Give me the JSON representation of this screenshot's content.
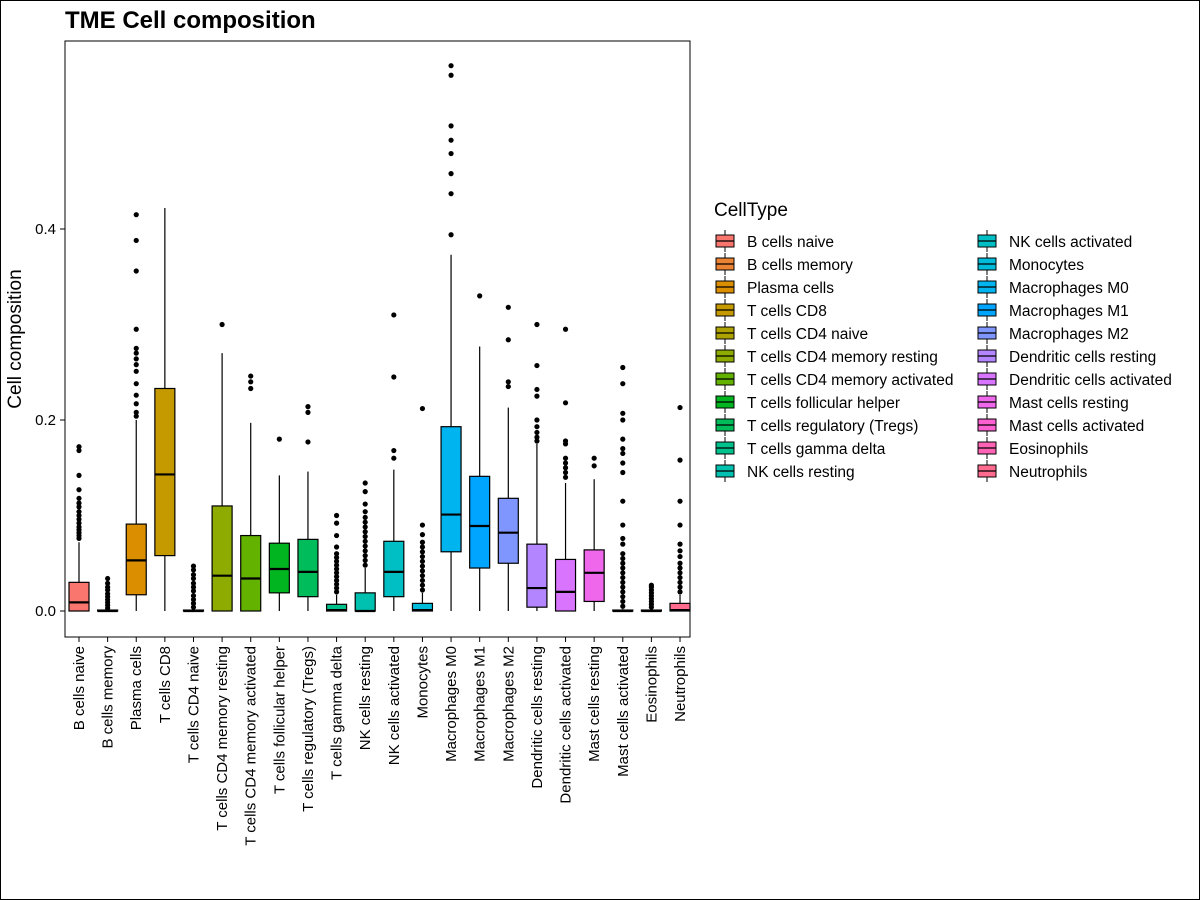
{
  "chart_data": {
    "type": "boxplot",
    "title": "TME Cell composition",
    "xlabel": "",
    "ylabel": "Cell composition",
    "ylim": [
      -0.028,
      0.597
    ],
    "yticks": [
      "0.0",
      "0.2",
      "0.4"
    ],
    "ytick_values": [
      0.0,
      0.2,
      0.4
    ],
    "grid": false,
    "legend": {
      "title": "CellType",
      "placement": "right",
      "columns": 2
    },
    "categories": [
      {
        "name": "B cells naive",
        "color": "#F8766D",
        "q1": 0,
        "median": 0.009,
        "q3": 0.03,
        "whisker_low": 0,
        "whisker_high": 0.072,
        "outliers": [
          0.076,
          0.079,
          0.082,
          0.085,
          0.088,
          0.092,
          0.096,
          0.1,
          0.104,
          0.109,
          0.113,
          0.118,
          0.127,
          0.142,
          0.168,
          0.172
        ]
      },
      {
        "name": "B cells memory",
        "color": "#EB8335",
        "q1": 0,
        "median": 0,
        "q3": 0.001,
        "whisker_low": 0,
        "whisker_high": 0.002,
        "outliers": [
          0.003,
          0.006,
          0.009,
          0.012,
          0.015,
          0.018,
          0.022,
          0.025,
          0.029,
          0.034
        ]
      },
      {
        "name": "Plasma cells",
        "color": "#DA8E00",
        "q1": 0.017,
        "median": 0.053,
        "q3": 0.091,
        "whisker_low": 0,
        "whisker_high": 0.2,
        "outliers": [
          0.204,
          0.208,
          0.217,
          0.226,
          0.238,
          0.251,
          0.258,
          0.264,
          0.27,
          0.275,
          0.295,
          0.356,
          0.388,
          0.415
        ]
      },
      {
        "name": "T cells CD8",
        "color": "#C59900",
        "q1": 0.058,
        "median": 0.143,
        "q3": 0.233,
        "whisker_low": 0,
        "whisker_high": 0.422,
        "outliers": []
      },
      {
        "name": "T cells CD4 naive",
        "color": "#AEA200",
        "q1": 0,
        "median": 0,
        "q3": 0.001,
        "whisker_low": 0,
        "whisker_high": 0.002,
        "outliers": [
          0.004,
          0.008,
          0.012,
          0.016,
          0.021,
          0.025,
          0.029,
          0.034,
          0.038,
          0.043,
          0.047
        ]
      },
      {
        "name": "T cells CD4 memory resting",
        "color": "#8DAB00",
        "q1": 0,
        "median": 0.037,
        "q3": 0.11,
        "whisker_low": 0,
        "whisker_high": 0.27,
        "outliers": [
          0.3
        ]
      },
      {
        "name": "T cells CD4 memory activated",
        "color": "#64B200",
        "q1": 0,
        "median": 0.034,
        "q3": 0.079,
        "whisker_low": 0,
        "whisker_high": 0.197,
        "outliers": [
          0.233,
          0.24,
          0.246
        ]
      },
      {
        "name": "T cells follicular helper",
        "color": "#00B520",
        "q1": 0.019,
        "median": 0.044,
        "q3": 0.071,
        "whisker_low": 0,
        "whisker_high": 0.142,
        "outliers": [
          0.18
        ]
      },
      {
        "name": "T cells regulatory (Tregs)",
        "color": "#00BC5A",
        "q1": 0.015,
        "median": 0.041,
        "q3": 0.075,
        "whisker_low": 0,
        "whisker_high": 0.146,
        "outliers": [
          0.177,
          0.208,
          0.214
        ]
      },
      {
        "name": "T cells gamma delta",
        "color": "#00C08B",
        "q1": 0,
        "median": 0.001,
        "q3": 0.007,
        "whisker_low": 0,
        "whisker_high": 0.017,
        "outliers": [
          0.02,
          0.024,
          0.028,
          0.032,
          0.036,
          0.04,
          0.044,
          0.048,
          0.052,
          0.056,
          0.06,
          0.067,
          0.079,
          0.092,
          0.1
        ]
      },
      {
        "name": "NK cells resting",
        "color": "#00C0AF",
        "q1": 0,
        "median": 0,
        "q3": 0.019,
        "whisker_low": 0,
        "whisker_high": 0.045,
        "outliers": [
          0.048,
          0.053,
          0.058,
          0.063,
          0.068,
          0.073,
          0.078,
          0.083,
          0.088,
          0.093,
          0.098,
          0.104,
          0.112,
          0.125,
          0.134
        ]
      },
      {
        "name": "NK cells activated",
        "color": "#00BFC4",
        "q1": 0.015,
        "median": 0.041,
        "q3": 0.073,
        "whisker_low": 0,
        "whisker_high": 0.148,
        "outliers": [
          0.16,
          0.168,
          0.245,
          0.31
        ]
      },
      {
        "name": "Monocytes",
        "color": "#00BBDA",
        "q1": 0,
        "median": 0.001,
        "q3": 0.008,
        "whisker_low": 0,
        "whisker_high": 0.019,
        "outliers": [
          0.022,
          0.027,
          0.032,
          0.037,
          0.042,
          0.047,
          0.052,
          0.057,
          0.062,
          0.067,
          0.072,
          0.08,
          0.09,
          0.212
        ]
      },
      {
        "name": "Macrophages M0",
        "color": "#00B4EF",
        "q1": 0.062,
        "median": 0.101,
        "q3": 0.193,
        "whisker_low": 0,
        "whisker_high": 0.373,
        "outliers": [
          0.394,
          0.437,
          0.458,
          0.479,
          0.493,
          0.508,
          0.561,
          0.571
        ]
      },
      {
        "name": "Macrophages M1",
        "color": "#00A5FF",
        "q1": 0.045,
        "median": 0.089,
        "q3": 0.141,
        "whisker_low": 0,
        "whisker_high": 0.277,
        "outliers": [
          0.33
        ]
      },
      {
        "name": "Macrophages M2",
        "color": "#7F96FF",
        "q1": 0.05,
        "median": 0.082,
        "q3": 0.118,
        "whisker_low": 0,
        "whisker_high": 0.213,
        "outliers": [
          0.235,
          0.24,
          0.284,
          0.318
        ]
      },
      {
        "name": "Dendritic cells resting",
        "color": "#B385FF",
        "q1": 0.004,
        "median": 0.024,
        "q3": 0.07,
        "whisker_low": 0,
        "whisker_high": 0.175,
        "outliers": [
          0.178,
          0.182,
          0.187,
          0.193,
          0.2,
          0.225,
          0.232,
          0.257,
          0.3
        ]
      },
      {
        "name": "Dendritic cells activated",
        "color": "#D874FD",
        "q1": 0,
        "median": 0.02,
        "q3": 0.054,
        "whisker_low": 0,
        "whisker_high": 0.134,
        "outliers": [
          0.14,
          0.145,
          0.15,
          0.155,
          0.16,
          0.175,
          0.178,
          0.218,
          0.295
        ]
      },
      {
        "name": "Mast cells resting",
        "color": "#EF67EB",
        "q1": 0.01,
        "median": 0.04,
        "q3": 0.064,
        "whisker_low": 0,
        "whisker_high": 0.138,
        "outliers": [
          0.152,
          0.16
        ]
      },
      {
        "name": "Mast cells activated",
        "color": "#FD61D1",
        "q1": 0,
        "median": 0,
        "q3": 0.001,
        "whisker_low": 0,
        "whisker_high": 0.002,
        "outliers": [
          0.005,
          0.01,
          0.015,
          0.02,
          0.025,
          0.03,
          0.035,
          0.04,
          0.045,
          0.05,
          0.055,
          0.06,
          0.07,
          0.076,
          0.09,
          0.115,
          0.145,
          0.155,
          0.165,
          0.17,
          0.18,
          0.2,
          0.207,
          0.238,
          0.255
        ]
      },
      {
        "name": "Eosinophils",
        "color": "#FF63B6",
        "q1": 0,
        "median": 0,
        "q3": 0.001,
        "whisker_low": 0,
        "whisker_high": 0.002,
        "outliers": [
          0.004,
          0.007,
          0.01,
          0.013,
          0.016,
          0.019,
          0.022,
          0.025,
          0.027
        ]
      },
      {
        "name": "Neutrophils",
        "color": "#FF6B8F",
        "q1": 0,
        "median": 0.001,
        "q3": 0.008,
        "whisker_low": 0,
        "whisker_high": 0.017,
        "outliers": [
          0.02,
          0.025,
          0.03,
          0.035,
          0.04,
          0.045,
          0.05,
          0.057,
          0.063,
          0.07,
          0.09,
          0.115,
          0.158,
          0.213
        ]
      }
    ]
  }
}
